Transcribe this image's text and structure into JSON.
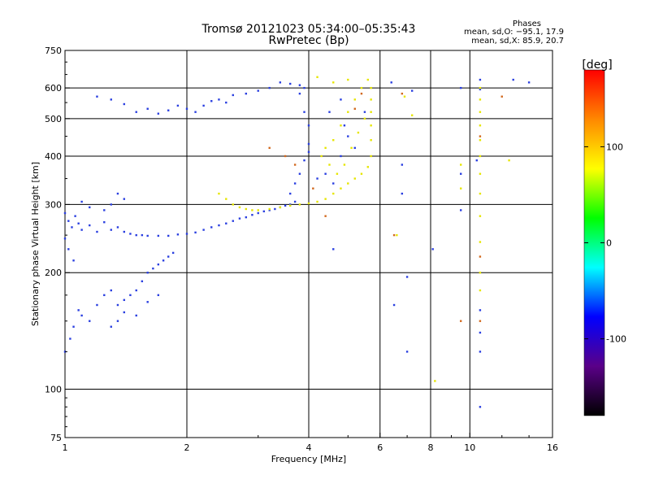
{
  "title": {
    "line1": "Tromsø 20121023 05:34:00–05:35:43",
    "line2": "RwPretec (Bp)"
  },
  "stats": {
    "heading": "Phases",
    "line_o": "mean, sd,O: −95.1, 17.9",
    "line_x": "mean, sd,X:  85.9, 20.7"
  },
  "chart_data": {
    "type": "scatter",
    "xlabel": "Frequency [MHz]",
    "ylabel": "Stationary phase Virtual Height [km]",
    "x_scale": "log",
    "y_scale": "log",
    "xlim": [
      1,
      16
    ],
    "ylim": [
      75,
      750
    ],
    "x_ticks": [
      1,
      2,
      4,
      6,
      8,
      10,
      16
    ],
    "y_ticks": [
      75,
      100,
      200,
      300,
      400,
      500,
      600,
      750
    ],
    "grid": true,
    "colorbar": {
      "label": "[deg]",
      "range": [
        -180,
        180
      ],
      "ticks": [
        -100,
        0,
        100
      ],
      "colormap": [
        "#000000",
        "#5a0088",
        "#0000ff",
        "#00ffff",
        "#00ff00",
        "#ffff00",
        "#ff8800",
        "#ff0000"
      ]
    },
    "series": [
      {
        "mode": "O",
        "color": "#2a3fe0",
        "points": [
          [
            1.0,
            285
          ],
          [
            1.02,
            272
          ],
          [
            1.04,
            262
          ],
          [
            1.06,
            280
          ],
          [
            1.08,
            268
          ],
          [
            1.1,
            258
          ],
          [
            1.15,
            265
          ],
          [
            1.2,
            255
          ],
          [
            1.25,
            270
          ],
          [
            1.3,
            258
          ],
          [
            1.35,
            262
          ],
          [
            1.4,
            255
          ],
          [
            1.45,
            252
          ],
          [
            1.5,
            250
          ],
          [
            1.55,
            250
          ],
          [
            1.6,
            249
          ],
          [
            1.7,
            249
          ],
          [
            1.8,
            249
          ],
          [
            1.9,
            251
          ],
          [
            2.0,
            252
          ],
          [
            2.1,
            254
          ],
          [
            2.2,
            258
          ],
          [
            2.3,
            262
          ],
          [
            2.4,
            265
          ],
          [
            2.5,
            268
          ],
          [
            2.6,
            272
          ],
          [
            2.7,
            276
          ],
          [
            2.8,
            278
          ],
          [
            2.9,
            282
          ],
          [
            3.0,
            285
          ],
          [
            3.1,
            288
          ],
          [
            3.2,
            290
          ],
          [
            3.3,
            292
          ],
          [
            3.4,
            295
          ],
          [
            3.5,
            298
          ],
          [
            3.6,
            300
          ],
          [
            3.7,
            305
          ],
          [
            1.3,
            300
          ],
          [
            1.35,
            320
          ],
          [
            1.4,
            310
          ],
          [
            1.25,
            290
          ],
          [
            1.15,
            295
          ],
          [
            1.1,
            305
          ],
          [
            1.0,
            245
          ],
          [
            1.02,
            230
          ],
          [
            1.05,
            215
          ],
          [
            1.0,
            125
          ],
          [
            1.03,
            135
          ],
          [
            1.05,
            145
          ],
          [
            1.08,
            160
          ],
          [
            1.1,
            155
          ],
          [
            1.15,
            150
          ],
          [
            1.2,
            165
          ],
          [
            1.25,
            175
          ],
          [
            1.3,
            180
          ],
          [
            1.35,
            165
          ],
          [
            1.4,
            170
          ],
          [
            1.45,
            175
          ],
          [
            1.5,
            180
          ],
          [
            1.55,
            190
          ],
          [
            1.6,
            200
          ],
          [
            1.65,
            205
          ],
          [
            1.7,
            210
          ],
          [
            1.75,
            215
          ],
          [
            1.8,
            220
          ],
          [
            1.85,
            225
          ],
          [
            1.3,
            145
          ],
          [
            1.35,
            150
          ],
          [
            1.4,
            158
          ],
          [
            1.5,
            155
          ],
          [
            1.6,
            168
          ],
          [
            1.7,
            175
          ],
          [
            1.5,
            520
          ],
          [
            1.6,
            530
          ],
          [
            1.7,
            515
          ],
          [
            1.8,
            525
          ],
          [
            1.9,
            540
          ],
          [
            2.0,
            530
          ],
          [
            2.1,
            520
          ],
          [
            2.2,
            540
          ],
          [
            2.3,
            555
          ],
          [
            2.4,
            560
          ],
          [
            2.5,
            550
          ],
          [
            2.6,
            575
          ],
          [
            2.8,
            580
          ],
          [
            3.0,
            590
          ],
          [
            3.2,
            600
          ],
          [
            3.4,
            620
          ],
          [
            3.6,
            615
          ],
          [
            3.8,
            610
          ],
          [
            1.3,
            560
          ],
          [
            1.4,
            545
          ],
          [
            1.2,
            570
          ],
          [
            3.6,
            320
          ],
          [
            3.7,
            340
          ],
          [
            3.8,
            360
          ],
          [
            3.9,
            390
          ],
          [
            4.0,
            410
          ],
          [
            4.0,
            430
          ],
          [
            4.0,
            480
          ],
          [
            3.9,
            520
          ],
          [
            3.8,
            580
          ],
          [
            3.9,
            600
          ],
          [
            4.2,
            350
          ],
          [
            4.4,
            360
          ],
          [
            4.6,
            340
          ],
          [
            4.8,
            400
          ],
          [
            5.0,
            450
          ],
          [
            4.5,
            520
          ],
          [
            4.8,
            560
          ],
          [
            4.9,
            480
          ],
          [
            5.2,
            420
          ],
          [
            5.5,
            520
          ],
          [
            10.6,
            630
          ],
          [
            10.6,
            595
          ],
          [
            10.6,
            160
          ],
          [
            10.6,
            140
          ],
          [
            10.6,
            125
          ],
          [
            10.6,
            90
          ],
          [
            9.5,
            600
          ],
          [
            9.5,
            360
          ],
          [
            6.8,
            320
          ],
          [
            6.8,
            380
          ],
          [
            6.4,
            620
          ],
          [
            7.2,
            590
          ],
          [
            7.0,
            195
          ],
          [
            7.0,
            125
          ],
          [
            6.5,
            165
          ],
          [
            14.0,
            620
          ],
          [
            12.8,
            630
          ],
          [
            8.1,
            230
          ],
          [
            9.5,
            290
          ],
          [
            10.4,
            390
          ],
          [
            4.6,
            230
          ]
        ]
      },
      {
        "mode": "X",
        "color": "#e6e600",
        "points": [
          [
            2.4,
            320
          ],
          [
            2.5,
            310
          ],
          [
            2.6,
            300
          ],
          [
            2.7,
            295
          ],
          [
            2.8,
            292
          ],
          [
            2.9,
            290
          ],
          [
            3.0,
            290
          ],
          [
            3.2,
            292
          ],
          [
            3.4,
            295
          ],
          [
            3.6,
            298
          ],
          [
            3.8,
            300
          ],
          [
            4.0,
            302
          ],
          [
            4.2,
            305
          ],
          [
            4.4,
            310
          ],
          [
            4.6,
            320
          ],
          [
            4.8,
            330
          ],
          [
            5.0,
            340
          ],
          [
            5.2,
            350
          ],
          [
            5.4,
            360
          ],
          [
            5.6,
            375
          ],
          [
            5.7,
            400
          ],
          [
            5.7,
            440
          ],
          [
            5.7,
            480
          ],
          [
            5.7,
            520
          ],
          [
            5.7,
            560
          ],
          [
            5.7,
            600
          ],
          [
            5.6,
            630
          ],
          [
            5.4,
            600
          ],
          [
            5.2,
            560
          ],
          [
            5.0,
            520
          ],
          [
            4.8,
            480
          ],
          [
            4.6,
            440
          ],
          [
            4.4,
            420
          ],
          [
            4.3,
            400
          ],
          [
            4.5,
            380
          ],
          [
            4.7,
            360
          ],
          [
            4.9,
            380
          ],
          [
            5.1,
            420
          ],
          [
            5.3,
            460
          ],
          [
            5.5,
            500
          ],
          [
            4.6,
            620
          ],
          [
            5.0,
            630
          ],
          [
            4.2,
            640
          ],
          [
            10.6,
            600
          ],
          [
            10.6,
            560
          ],
          [
            10.6,
            520
          ],
          [
            10.6,
            480
          ],
          [
            10.6,
            440
          ],
          [
            10.6,
            400
          ],
          [
            10.6,
            360
          ],
          [
            10.6,
            320
          ],
          [
            10.6,
            280
          ],
          [
            10.6,
            240
          ],
          [
            10.6,
            200
          ],
          [
            10.6,
            180
          ],
          [
            9.5,
            330
          ],
          [
            9.5,
            380
          ],
          [
            8.2,
            105
          ],
          [
            7.2,
            510
          ],
          [
            6.6,
            250
          ],
          [
            6.9,
            570
          ],
          [
            12.5,
            390
          ]
        ]
      },
      {
        "mode": "other",
        "color": "#d2691e",
        "points": [
          [
            3.2,
            420
          ],
          [
            3.5,
            400
          ],
          [
            3.7,
            380
          ],
          [
            4.1,
            330
          ],
          [
            4.4,
            280
          ],
          [
            5.2,
            530
          ],
          [
            5.4,
            580
          ],
          [
            10.6,
            450
          ],
          [
            10.6,
            220
          ],
          [
            10.6,
            150
          ],
          [
            6.8,
            580
          ],
          [
            9.5,
            150
          ],
          [
            12.0,
            570
          ],
          [
            6.5,
            250
          ]
        ]
      }
    ]
  }
}
